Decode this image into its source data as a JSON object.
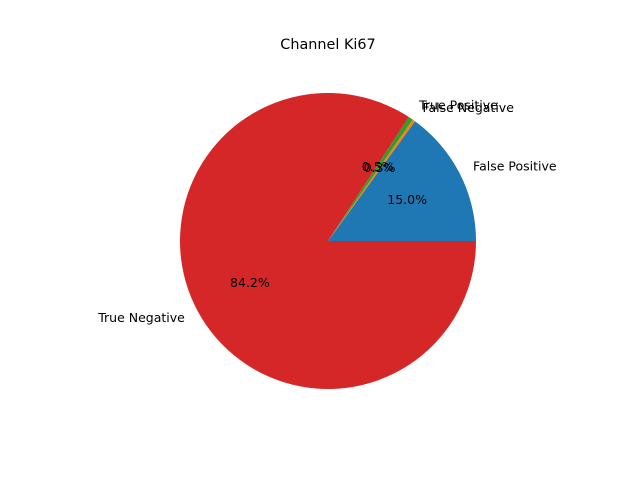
{
  "chart_data": {
    "type": "pie",
    "title": "Channel Ki67",
    "labels": [
      "False Positive",
      "False Negative",
      "True Positive",
      "True Negative"
    ],
    "values": [
      15.0,
      0.3,
      0.5,
      84.2
    ],
    "percent_labels": [
      "15.0%",
      "0.3%",
      "0.5%",
      "84.2%"
    ],
    "colors": [
      "#1f77b4",
      "#ff7f0e",
      "#2ca02c",
      "#d62728"
    ],
    "start_angle_deg": 0,
    "direction": "counterclockwise"
  }
}
